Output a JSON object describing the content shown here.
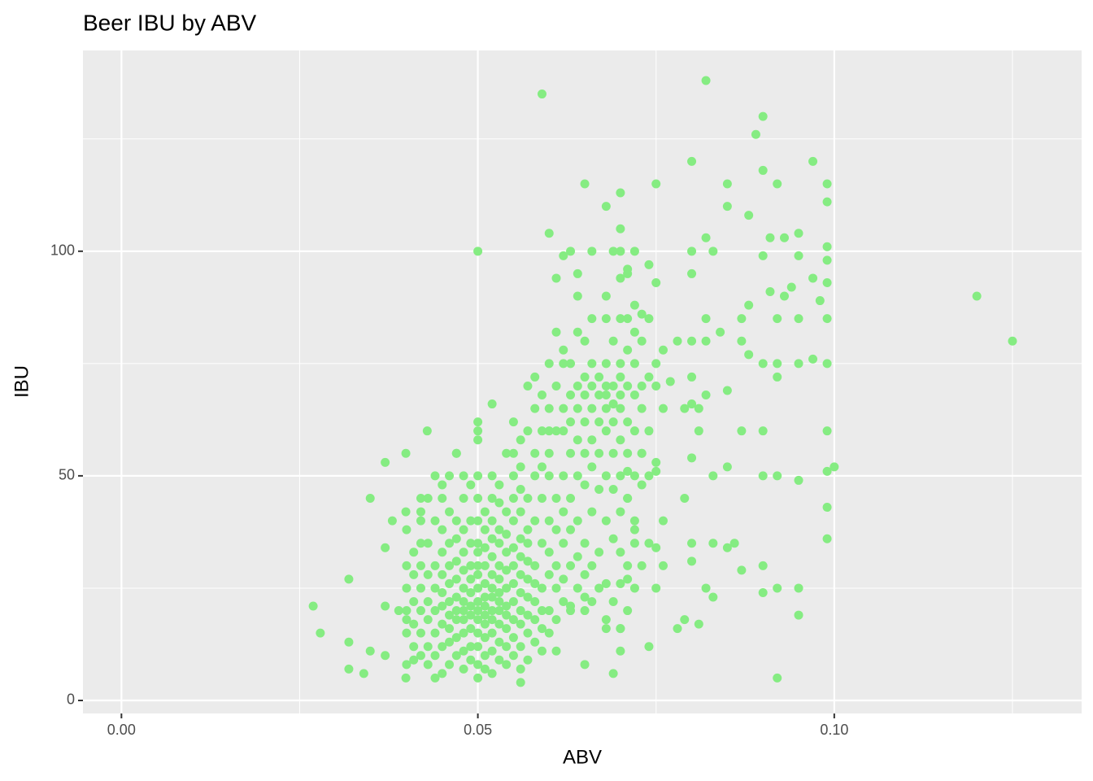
{
  "chart_data": {
    "type": "scatter",
    "title": "Beer IBU by ABV",
    "x_label": "ABV",
    "y_label": "IBU",
    "color": "#85ec82",
    "grid": true,
    "xlim": [
      -0.0054,
      0.1347
    ],
    "ylim": [
      -2.9,
      144.7
    ],
    "xticks": [
      {
        "value": 0,
        "label": "0.00"
      },
      {
        "value": 0.05,
        "label": "0.05"
      },
      {
        "value": 0.1,
        "label": "0.10"
      }
    ],
    "yticks": [
      0,
      50,
      100
    ],
    "x_minor_grid": [
      0.025,
      0.075,
      0.125
    ],
    "y_minor_grid": [
      25,
      75,
      125
    ],
    "x": [
      0.0269,
      0.0279,
      0.0319,
      0.0319,
      0.0319,
      0.034,
      0.0349,
      0.0349,
      0.037,
      0.037,
      0.037,
      0.037,
      0.038,
      0.0389,
      0.0399,
      0.0399,
      0.0399,
      0.042,
      0.0429,
      0.042,
      0.047,
      0.05,
      0.05,
      0.052,
      0.056,
      0.059,
      0.06,
      0.061,
      0.062,
      0.063,
      0.064,
      0.064,
      0.065,
      0.066,
      0.068,
      0.068,
      0.069,
      0.07,
      0.07,
      0.07,
      0.071,
      0.072,
      0.074,
      0.075,
      0.075,
      0.08,
      0.08,
      0.082,
      0.082,
      0.083,
      0.085,
      0.085,
      0.088,
      0.089,
      0.09,
      0.09,
      0.09,
      0.091,
      0.092,
      0.093,
      0.095,
      0.097,
      0.099,
      0.099,
      0.099,
      0.099,
      0.099,
      0.099,
      0.099,
      0.099,
      0.099,
      0.1,
      0.099,
      0.099,
      0.12,
      0.125,
      0.092,
      0.095,
      0.095,
      0.092,
      0.09,
      0.09,
      0.087,
      0.086,
      0.085,
      0.083,
      0.083,
      0.082,
      0.081,
      0.079,
      0.078,
      0.08,
      0.08,
      0.076,
      0.076,
      0.079,
      0.08,
      0.083,
      0.085,
      0.09,
      0.092,
      0.095,
      0.087,
      0.09,
      0.092,
      0.092,
      0.09,
      0.088,
      0.087,
      0.095,
      0.097,
      0.084,
      0.082,
      0.082,
      0.08,
      0.08,
      0.087,
      0.088,
      0.091,
      0.093,
      0.094,
      0.092,
      0.095,
      0.097,
      0.095,
      0.098,
      0.075,
      0.076,
      0.077,
      0.078,
      0.079,
      0.081,
      0.082,
      0.085,
      0.08,
      0.08,
      0.081,
      0.075,
      0.076,
      0.075,
      0.075,
      0.073,
      0.071,
      0.071,
      0.072,
      0.074,
      0.07,
      0.069,
      0.068,
      0.065,
      0.061,
      0.07,
      0.065,
      0.063,
      0.075,
      0.075,
      0.071,
      0.072,
      0.04,
      0.04,
      0.04,
      0.04,
      0.04,
      0.04,
      0.04,
      0.041,
      0.041,
      0.041,
      0.041,
      0.041,
      0.041,
      0.042,
      0.042,
      0.042,
      0.042,
      0.042,
      0.042,
      0.042,
      0.043,
      0.043,
      0.043,
      0.043,
      0.043,
      0.043,
      0.043,
      0.044,
      0.044,
      0.044,
      0.044,
      0.044,
      0.044,
      0.044,
      0.044,
      0.045,
      0.045,
      0.045,
      0.045,
      0.045,
      0.045,
      0.045,
      0.045,
      0.045,
      0.045,
      0.046,
      0.046,
      0.046,
      0.046,
      0.046,
      0.046,
      0.046,
      0.046,
      0.046,
      0.046,
      0.047,
      0.047,
      0.047,
      0.047,
      0.047,
      0.047,
      0.047,
      0.047,
      0.047,
      0.047,
      0.048,
      0.048,
      0.048,
      0.048,
      0.048,
      0.048,
      0.048,
      0.048,
      0.048,
      0.048,
      0.048,
      0.048,
      0.049,
      0.049,
      0.049,
      0.049,
      0.049,
      0.049,
      0.049,
      0.049,
      0.049,
      0.049,
      0.049,
      0.05,
      0.05,
      0.05,
      0.05,
      0.05,
      0.05,
      0.05,
      0.05,
      0.05,
      0.05,
      0.05,
      0.05,
      0.05,
      0.05,
      0.05,
      0.05,
      0.05,
      0.051,
      0.051,
      0.051,
      0.051,
      0.051,
      0.051,
      0.051,
      0.051,
      0.051,
      0.051,
      0.051,
      0.051,
      0.052,
      0.052,
      0.052,
      0.052,
      0.052,
      0.052,
      0.052,
      0.052,
      0.052,
      0.052,
      0.052,
      0.052,
      0.052,
      0.053,
      0.053,
      0.053,
      0.053,
      0.053,
      0.053,
      0.053,
      0.053,
      0.053,
      0.053,
      0.053,
      0.053,
      0.054,
      0.054,
      0.054,
      0.054,
      0.054,
      0.054,
      0.054,
      0.054,
      0.054,
      0.054,
      0.054,
      0.055,
      0.055,
      0.055,
      0.055,
      0.055,
      0.055,
      0.055,
      0.055,
      0.055,
      0.055,
      0.055,
      0.055,
      0.056,
      0.056,
      0.056,
      0.056,
      0.056,
      0.056,
      0.056,
      0.056,
      0.056,
      0.056,
      0.056,
      0.056,
      0.057,
      0.057,
      0.057,
      0.057,
      0.057,
      0.057,
      0.057,
      0.057,
      0.057,
      0.057,
      0.057,
      0.058,
      0.058,
      0.058,
      0.058,
      0.058,
      0.058,
      0.058,
      0.058,
      0.058,
      0.058,
      0.059,
      0.059,
      0.059,
      0.059,
      0.059,
      0.059,
      0.059,
      0.059,
      0.059,
      0.06,
      0.06,
      0.06,
      0.06,
      0.06,
      0.06,
      0.06,
      0.06,
      0.06,
      0.06,
      0.061,
      0.061,
      0.061,
      0.061,
      0.061,
      0.061,
      0.061,
      0.061,
      0.062,
      0.062,
      0.062,
      0.062,
      0.062,
      0.062,
      0.062,
      0.062,
      0.062,
      0.063,
      0.063,
      0.063,
      0.063,
      0.063,
      0.063,
      0.063,
      0.063,
      0.064,
      0.064,
      0.064,
      0.064,
      0.064,
      0.064,
      0.064,
      0.064,
      0.065,
      0.065,
      0.065,
      0.065,
      0.065,
      0.065,
      0.065,
      0.065,
      0.065,
      0.066,
      0.066,
      0.066,
      0.066,
      0.066,
      0.066,
      0.066,
      0.066,
      0.066,
      0.067,
      0.067,
      0.067,
      0.067,
      0.067,
      0.067,
      0.067,
      0.068,
      0.068,
      0.068,
      0.068,
      0.068,
      0.068,
      0.068,
      0.068,
      0.068,
      0.068,
      0.069,
      0.069,
      0.069,
      0.069,
      0.069,
      0.069,
      0.069,
      0.069,
      0.07,
      0.07,
      0.07,
      0.07,
      0.07,
      0.07,
      0.07,
      0.07,
      0.07,
      0.07,
      0.07,
      0.07,
      0.071,
      0.071,
      0.071,
      0.071,
      0.071,
      0.071,
      0.071,
      0.071,
      0.071,
      0.072,
      0.072,
      0.072,
      0.072,
      0.072,
      0.072,
      0.072,
      0.072,
      0.073,
      0.073,
      0.073,
      0.073,
      0.073,
      0.073,
      0.073,
      0.074,
      0.074,
      0.074,
      0.074,
      0.074
    ],
    "values": [
      21,
      15,
      27,
      13,
      7,
      6,
      45,
      11,
      53,
      34,
      21,
      10,
      40,
      20,
      55,
      42,
      5,
      42,
      60,
      35,
      55,
      100,
      62,
      66,
      4,
      135,
      104,
      94,
      99,
      100,
      95,
      90,
      115,
      100,
      110,
      90,
      100,
      113,
      105,
      100,
      95,
      100,
      97,
      115,
      93,
      120,
      100,
      138,
      103,
      100,
      115,
      110,
      108,
      126,
      130,
      118,
      99,
      103,
      115,
      103,
      104,
      120,
      115,
      111,
      101,
      98,
      93,
      85,
      75,
      60,
      51,
      52,
      43,
      36,
      90,
      80,
      5,
      19,
      25,
      25,
      24,
      30,
      29,
      35,
      34,
      35,
      23,
      25,
      17,
      18,
      16,
      35,
      31,
      30,
      40,
      45,
      54,
      50,
      52,
      50,
      50,
      49,
      60,
      60,
      75,
      72,
      75,
      77,
      80,
      75,
      76,
      82,
      85,
      80,
      80,
      95,
      85,
      88,
      91,
      90,
      92,
      85,
      85,
      94,
      99,
      89,
      75,
      78,
      71,
      80,
      65,
      65,
      68,
      69,
      72,
      66,
      60,
      70,
      65,
      53,
      51,
      55,
      51,
      45,
      40,
      12,
      16,
      6,
      16,
      8,
      11,
      11,
      23,
      21,
      34,
      25,
      27,
      35,
      8,
      15,
      18,
      20,
      25,
      30,
      38,
      12,
      17,
      22,
      28,
      33,
      9,
      10,
      15,
      20,
      25,
      30,
      40,
      45,
      8,
      12,
      18,
      22,
      28,
      35,
      45,
      5,
      10,
      15,
      20,
      25,
      30,
      40,
      50,
      6,
      12,
      17,
      21,
      24,
      28,
      33,
      38,
      45,
      48,
      8,
      13,
      16,
      19,
      22,
      26,
      30,
      35,
      42,
      50,
      10,
      14,
      18,
      20,
      23,
      27,
      31,
      36,
      40,
      55,
      7,
      11,
      15,
      18,
      20,
      22,
      25,
      29,
      33,
      38,
      45,
      50,
      9,
      12,
      16,
      19,
      21,
      24,
      27,
      30,
      35,
      40,
      48,
      5,
      8,
      12,
      15,
      18,
      20,
      22,
      25,
      28,
      30,
      33,
      35,
      40,
      45,
      50,
      58,
      60,
      7,
      10,
      14,
      17,
      19,
      21,
      23,
      26,
      30,
      34,
      38,
      42,
      6,
      11,
      15,
      18,
      20,
      23,
      25,
      28,
      32,
      36,
      40,
      45,
      50,
      9,
      13,
      17,
      20,
      22,
      24,
      27,
      30,
      35,
      38,
      44,
      48,
      8,
      12,
      16,
      19,
      21,
      25,
      29,
      33,
      37,
      42,
      55,
      10,
      14,
      18,
      22,
      26,
      30,
      34,
      40,
      45,
      50,
      55,
      62,
      7,
      12,
      17,
      20,
      24,
      28,
      32,
      36,
      42,
      47,
      52,
      58,
      9,
      15,
      19,
      23,
      27,
      31,
      35,
      38,
      45,
      60,
      70,
      13,
      18,
      22,
      26,
      30,
      40,
      50,
      55,
      65,
      72,
      11,
      16,
      20,
      25,
      35,
      45,
      52,
      60,
      68,
      15,
      20,
      28,
      33,
      40,
      50,
      55,
      60,
      65,
      75,
      18,
      25,
      30,
      38,
      45,
      60,
      70,
      82,
      22,
      27,
      35,
      42,
      50,
      60,
      65,
      75,
      78,
      20,
      30,
      38,
      45,
      55,
      62,
      68,
      75,
      25,
      32,
      40,
      50,
      58,
      65,
      70,
      82,
      20,
      28,
      35,
      48,
      55,
      62,
      68,
      72,
      80,
      22,
      30,
      42,
      52,
      58,
      65,
      70,
      75,
      85,
      25,
      33,
      47,
      55,
      62,
      68,
      72,
      18,
      26,
      40,
      50,
      60,
      65,
      68,
      70,
      75,
      85,
      22,
      36,
      47,
      55,
      62,
      66,
      70,
      80,
      16,
      26,
      33,
      42,
      50,
      58,
      65,
      68,
      72,
      75,
      85,
      94,
      20,
      30,
      45,
      55,
      62,
      70,
      78,
      85,
      96,
      25,
      38,
      50,
      60,
      68,
      75,
      82,
      88,
      30,
      48,
      55,
      65,
      70,
      80,
      86,
      35,
      50,
      60,
      72,
      85
    ]
  }
}
